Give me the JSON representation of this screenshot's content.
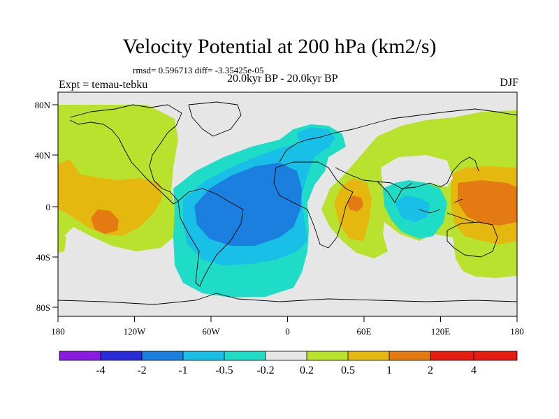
{
  "title": "Velocity Potential at 200 hPa (km2/s)",
  "stats": "rmsd= 0.596713 diff= -3.35425e-05",
  "experiment": "Expt = temau-tebku",
  "period": "20.0kyr BP - 20.0kyr BP",
  "season": "DJF",
  "axes": {
    "x_ticks": [
      "180",
      "120W",
      "60W",
      "0",
      "60E",
      "120E",
      "180"
    ],
    "y_ticks": [
      "80N",
      "40N",
      "0",
      "40S",
      "80S"
    ]
  },
  "colorbar": {
    "labels": [
      "-4",
      "-2",
      "-1",
      "-0.5",
      "-0.2",
      "0.2",
      "0.5",
      "1",
      "2",
      "4"
    ],
    "colors": [
      "#8a1be3",
      "#2a2ad8",
      "#1b7fe0",
      "#18bfe6",
      "#1fdcc6",
      "#e6e6e6",
      "#b8e22e",
      "#e5b80f",
      "#e47b12",
      "#e61c10"
    ]
  }
}
